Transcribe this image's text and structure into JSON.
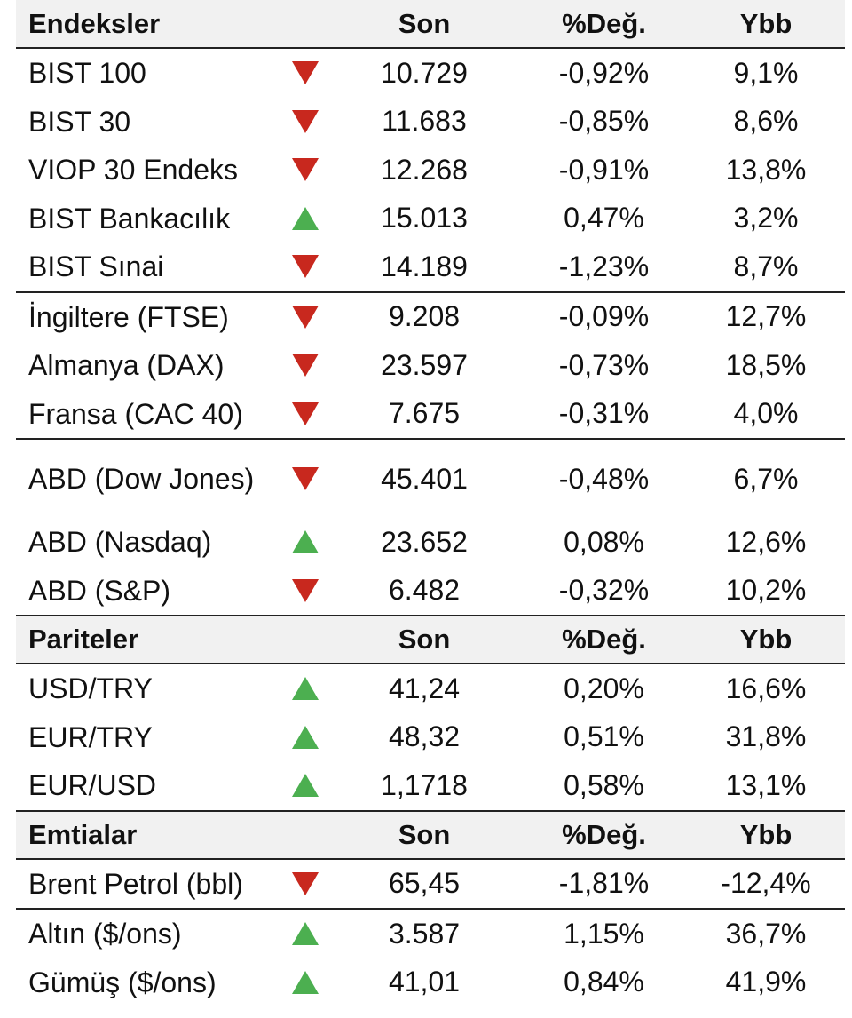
{
  "colors": {
    "down": "#c8281e",
    "up": "#4caf50"
  },
  "columns": {
    "son": "Son",
    "deg": "%Değ.",
    "ybb": "Ybb"
  },
  "sections": [
    {
      "title": "Endeksler",
      "groups": [
        [
          {
            "name": "BIST 100",
            "dir": "down",
            "son": "10.729",
            "deg": "-0,92%",
            "ybb": "9,1%"
          },
          {
            "name": "BIST 30",
            "dir": "down",
            "son": "11.683",
            "deg": "-0,85%",
            "ybb": "8,6%"
          },
          {
            "name": "VIOP 30 Endeks",
            "dir": "down",
            "son": "12.268",
            "deg": "-0,91%",
            "ybb": "13,8%"
          },
          {
            "name": "BIST Bankacılık",
            "dir": "up",
            "son": "15.013",
            "deg": "0,47%",
            "ybb": "3,2%"
          },
          {
            "name": "BIST Sınai",
            "dir": "down",
            "son": "14.189",
            "deg": "-1,23%",
            "ybb": "8,7%"
          }
        ],
        [
          {
            "name": "İngiltere (FTSE)",
            "dir": "down",
            "son": "9.208",
            "deg": "-0,09%",
            "ybb": "12,7%"
          },
          {
            "name": "Almanya (DAX)",
            "dir": "down",
            "son": "23.597",
            "deg": "-0,73%",
            "ybb": "18,5%"
          },
          {
            "name": "Fransa (CAC 40)",
            "dir": "down",
            "son": "7.675",
            "deg": "-0,31%",
            "ybb": "4,0%"
          }
        ],
        [
          {
            "name": "ABD (Dow Jones)",
            "dir": "down",
            "son": "45.401",
            "deg": "-0,48%",
            "ybb": "6,7%",
            "tall": true
          },
          {
            "name": "ABD (Nasdaq)",
            "dir": "up",
            "son": "23.652",
            "deg": "0,08%",
            "ybb": "12,6%"
          },
          {
            "name": "ABD (S&P)",
            "dir": "down",
            "son": "6.482",
            "deg": "-0,32%",
            "ybb": "10,2%"
          }
        ]
      ]
    },
    {
      "title": "Pariteler",
      "groups": [
        [
          {
            "name": "USD/TRY",
            "dir": "up",
            "son": "41,24",
            "deg": "0,20%",
            "ybb": "16,6%"
          },
          {
            "name": "EUR/TRY",
            "dir": "up",
            "son": "48,32",
            "deg": "0,51%",
            "ybb": "31,8%"
          },
          {
            "name": "EUR/USD",
            "dir": "up",
            "son": "1,1718",
            "deg": "0,58%",
            "ybb": "13,1%"
          }
        ]
      ]
    },
    {
      "title": "Emtialar",
      "groups": [
        [
          {
            "name": "Brent Petrol (bbl)",
            "dir": "down",
            "son": "65,45",
            "deg": "-1,81%",
            "ybb": "-12,4%"
          }
        ],
        [
          {
            "name": "Altın ($/ons)",
            "dir": "up",
            "son": "3.587",
            "deg": "1,15%",
            "ybb": "36,7%"
          },
          {
            "name": "Gümüş ($/ons)",
            "dir": "up",
            "son": "41,01",
            "deg": "0,84%",
            "ybb": "41,9%"
          }
        ]
      ]
    }
  ]
}
